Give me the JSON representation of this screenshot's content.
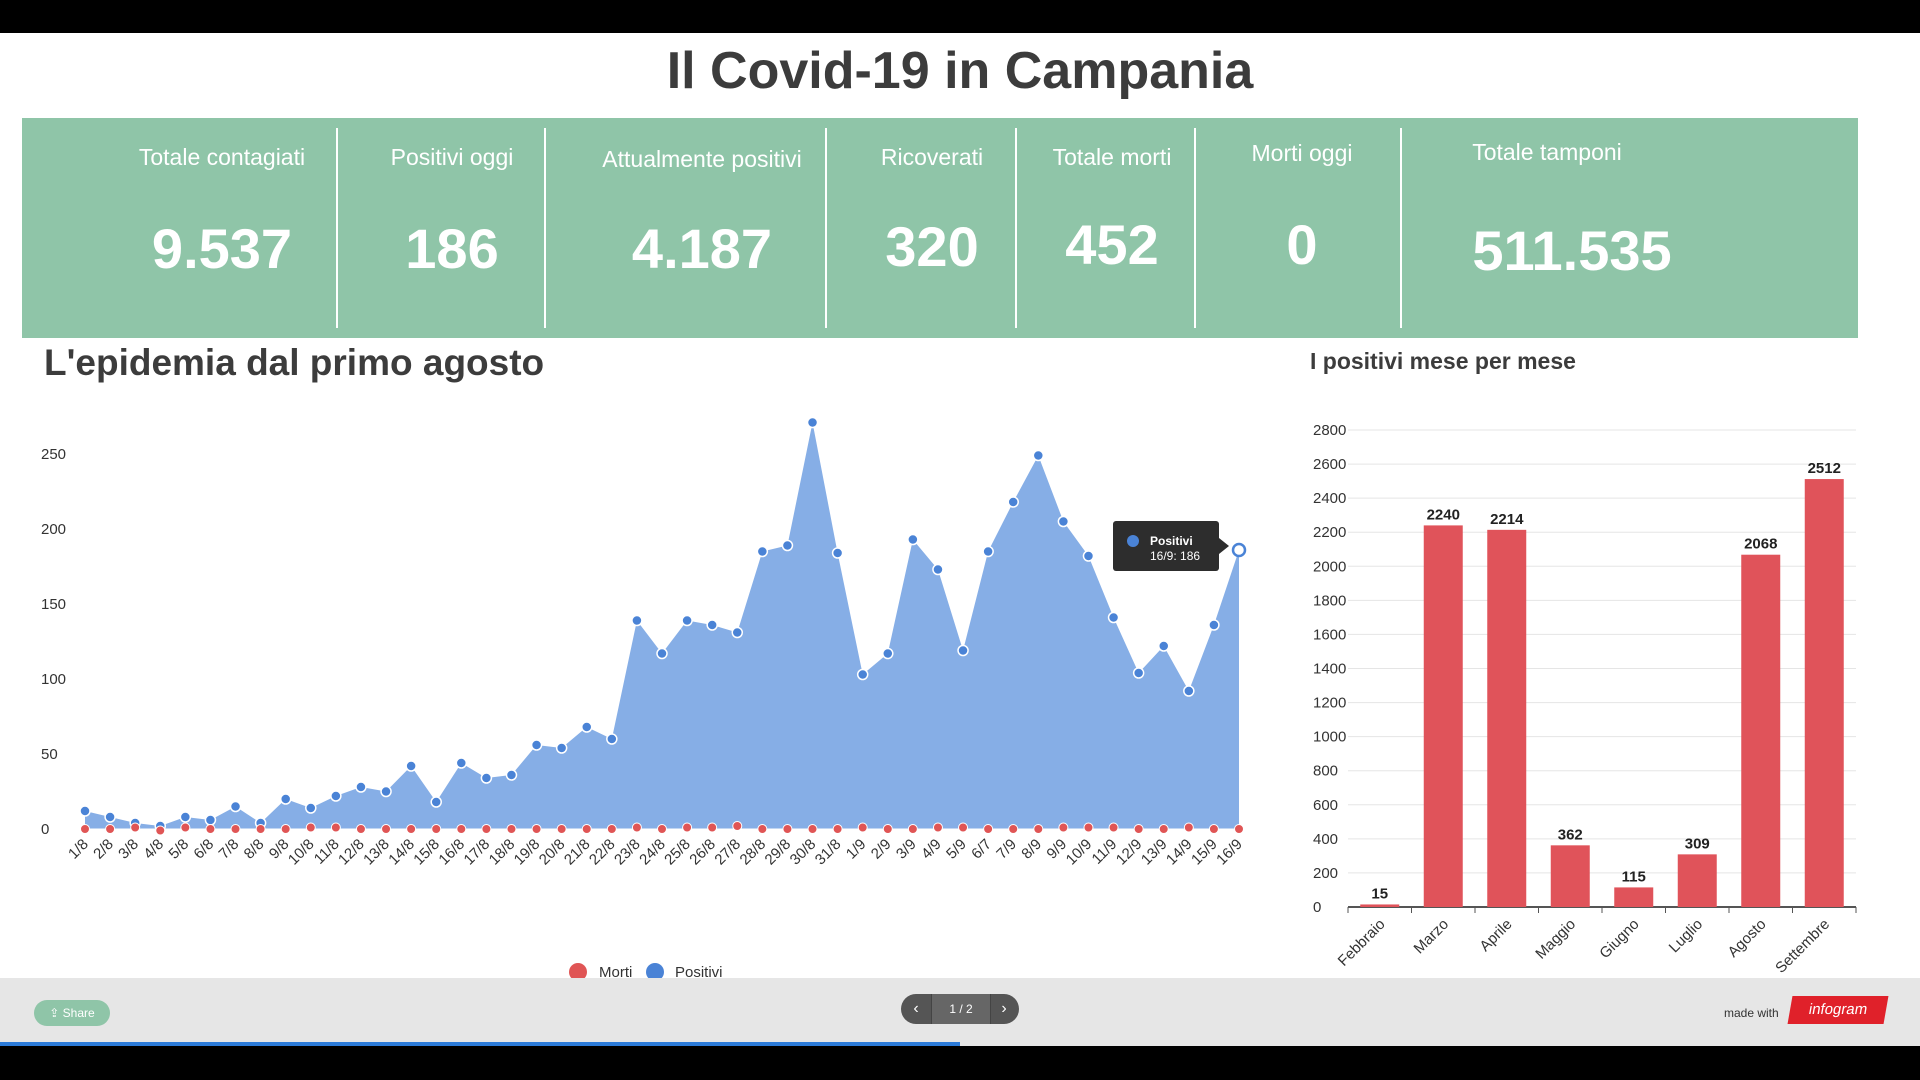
{
  "title": "Il Covid-19 in Campania",
  "stats": [
    {
      "label": "Totale contagiati",
      "value": "9.537"
    },
    {
      "label": "Positivi oggi",
      "value": "186"
    },
    {
      "label": "Attualmente positivi",
      "value": "4.187"
    },
    {
      "label": "Ricoverati",
      "value": "320"
    },
    {
      "label": "Totale morti",
      "value": "452"
    },
    {
      "label": "Morti oggi",
      "value": "0"
    },
    {
      "label": "Totale tamponi",
      "value": "511.535"
    }
  ],
  "line_title": "L'epidemia dal primo agosto",
  "bar_title": "I positivi mese per mese",
  "tooltip": {
    "series": "Positivi",
    "text": "16/9: 186"
  },
  "footer": {
    "share": "Share",
    "page": "1 / 2",
    "made_with": "made with",
    "brand": "infogram"
  },
  "colors": {
    "positivi": "#86aee6",
    "positivi_marker": "#4a83d6",
    "morti": "#e05555",
    "bars": "#e0535a",
    "stats_bg": "#8fc5a8"
  },
  "chart_data": [
    {
      "type": "area",
      "title": "L'epidemia dal primo agosto",
      "categories": [
        "1/8",
        "2/8",
        "3/8",
        "4/8",
        "5/8",
        "6/8",
        "7/8",
        "8/8",
        "9/8",
        "10/8",
        "11/8",
        "12/8",
        "13/8",
        "14/8",
        "15/8",
        "16/8",
        "17/8",
        "18/8",
        "19/8",
        "20/8",
        "21/8",
        "22/8",
        "23/8",
        "24/8",
        "25/8",
        "26/8",
        "27/8",
        "28/8",
        "29/8",
        "30/8",
        "31/8",
        "1/9",
        "2/9",
        "3/9",
        "4/9",
        "5/9",
        "6/7",
        "7/9",
        "8/9",
        "9/9",
        "10/9",
        "11/9",
        "12/9",
        "13/9",
        "14/9",
        "15/9",
        "16/9"
      ],
      "ylim": [
        0,
        250
      ],
      "yticks": [
        0,
        50,
        100,
        150,
        200,
        250
      ],
      "legend_position": "bottom",
      "series": [
        {
          "name": "Morti",
          "values": [
            0,
            0,
            1,
            -1,
            1,
            0,
            0,
            0,
            0,
            1,
            1,
            0,
            0,
            0,
            0,
            0,
            0,
            0,
            0,
            0,
            0,
            0,
            1,
            0,
            1,
            1,
            2,
            0,
            0,
            0,
            0,
            1,
            0,
            0,
            1,
            1,
            0,
            0,
            0,
            1,
            1,
            1,
            0,
            0,
            1,
            0,
            0
          ]
        },
        {
          "name": "Positivi",
          "values": [
            12,
            8,
            4,
            2,
            8,
            6,
            15,
            4,
            20,
            14,
            22,
            28,
            25,
            42,
            18,
            44,
            34,
            36,
            56,
            54,
            68,
            60,
            139,
            117,
            139,
            136,
            131,
            185,
            189,
            271,
            184,
            103,
            117,
            193,
            173,
            119,
            185,
            218,
            249,
            205,
            182,
            141,
            104,
            122,
            92,
            136,
            186
          ]
        }
      ]
    },
    {
      "type": "bar",
      "title": "I positivi mese per mese",
      "categories": [
        "Febbraio",
        "Marzo",
        "Aprile",
        "Maggio",
        "Giugno",
        "Luglio",
        "Agosto",
        "Settembre"
      ],
      "values": [
        15,
        2240,
        2214,
        362,
        115,
        309,
        2068,
        2512
      ],
      "ylim": [
        0,
        2800
      ],
      "yticks": [
        0,
        200,
        400,
        600,
        800,
        1000,
        1200,
        1400,
        1600,
        1800,
        2000,
        2200,
        2400,
        2600,
        2800
      ]
    }
  ]
}
